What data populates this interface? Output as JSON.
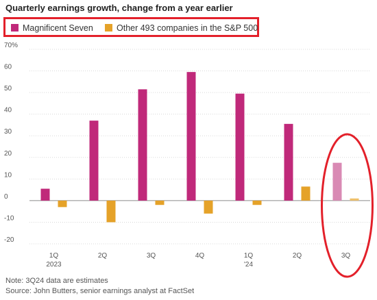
{
  "title": "Quarterly earnings growth, change from a year earlier",
  "notes": {
    "note": "Note: 3Q24 data are estimates",
    "source": "Source: John Butters, senior earnings analyst at FactSet"
  },
  "colors": {
    "magnificent": "#c0297a",
    "magnificent_estimate": "#d98ab4",
    "other": "#e5a229",
    "other_estimate": "#efc16a",
    "highlight": "#e3202a",
    "grid": "#d8d8d8"
  },
  "chart_data": {
    "type": "bar",
    "title": "Quarterly earnings growth, change from a year earlier",
    "xlabel": "",
    "ylabel": "",
    "ylim": [
      -20,
      70
    ],
    "yticks": [
      70,
      60,
      50,
      40,
      30,
      20,
      10,
      0,
      -10,
      -20
    ],
    "ytick_labels": [
      "70%",
      "60",
      "50",
      "40",
      "30",
      "20",
      "10",
      "0",
      "-10",
      "-20"
    ],
    "categories": [
      "1Q 2023",
      "2Q",
      "3Q",
      "4Q",
      "1Q '24",
      "2Q",
      "3Q"
    ],
    "category_labels": [
      {
        "line1": "1Q",
        "line2": "2023"
      },
      {
        "line1": "2Q",
        "line2": ""
      },
      {
        "line1": "3Q",
        "line2": ""
      },
      {
        "line1": "4Q",
        "line2": ""
      },
      {
        "line1": "1Q",
        "line2": "'24"
      },
      {
        "line1": "2Q",
        "line2": ""
      },
      {
        "line1": "3Q",
        "line2": ""
      }
    ],
    "series": [
      {
        "name": "Magnificent Seven",
        "values": [
          5.5,
          37,
          51.5,
          59.5,
          49.5,
          35.5,
          17.5
        ]
      },
      {
        "name": "Other 493 companies in the S&P 500",
        "values": [
          -3,
          -10,
          -2,
          -6,
          -2,
          6.5,
          1
        ]
      }
    ],
    "estimate_index": 6,
    "grid": true,
    "legend": "top-left"
  }
}
